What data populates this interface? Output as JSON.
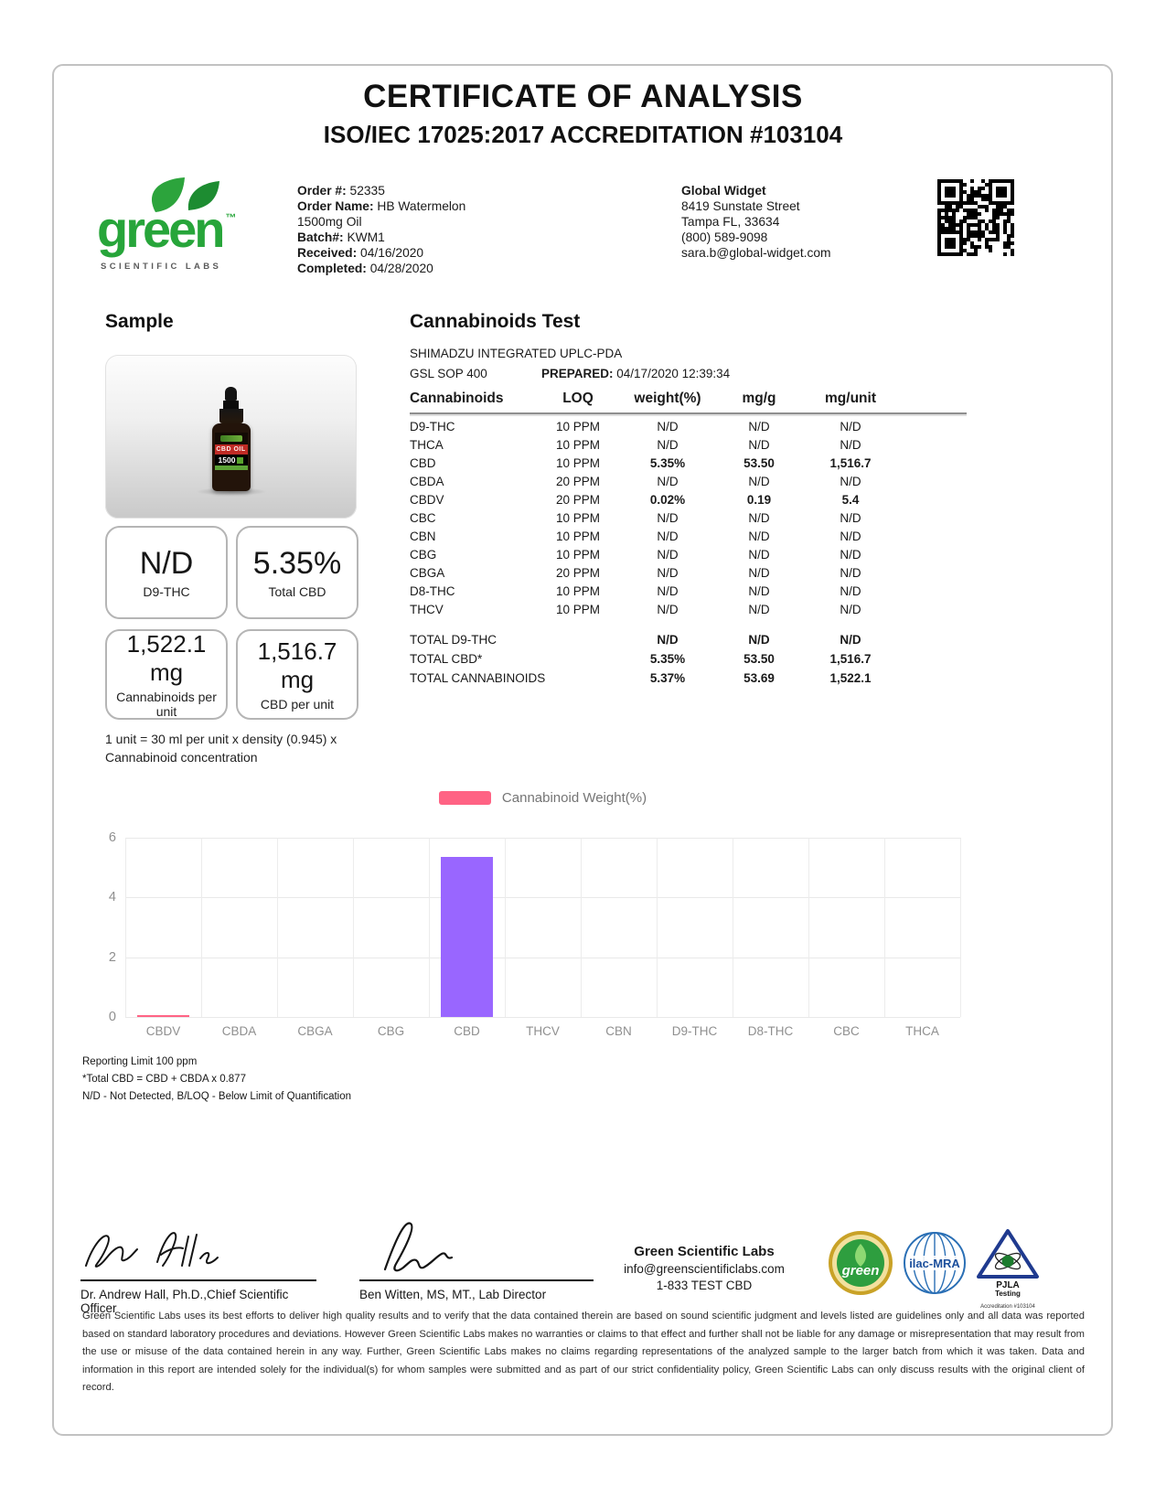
{
  "header": {
    "title": "CERTIFICATE OF ANALYSIS",
    "subtitle": "ISO/IEC 17025:2017 ACCREDITATION #103104"
  },
  "logo": {
    "brand": "green",
    "tm": "™",
    "tagline": "SCIENTIFIC LABS"
  },
  "order": {
    "order_label": "Order #:",
    "order_number": "52335",
    "name_label": "Order Name:",
    "name": "HB Watermelon 1500mg Oil",
    "batch_label": "Batch#:",
    "batch": "KWM1",
    "received_label": "Received:",
    "received": "04/16/2020",
    "completed_label": "Completed:",
    "completed": "04/28/2020"
  },
  "client": {
    "name": "Global Widget",
    "address_line1": "8419 Sunstate Street",
    "address_line2": "Tampa FL, 33634",
    "phone": "(800) 589-9098",
    "email": "sara.b@global-widget.com"
  },
  "sample": {
    "section_title": "Sample",
    "bottle_label": {
      "product": "CBD OIL",
      "strength": "1500"
    },
    "cards": [
      {
        "value": "N/D",
        "label": "D9-THC"
      },
      {
        "value": "5.35%",
        "label": "Total CBD"
      },
      {
        "value": "1,522.1 mg",
        "label": "Cannabinoids per unit"
      },
      {
        "value": "1,516.7 mg",
        "label": "CBD per unit"
      }
    ],
    "unit_note": "1 unit = 30 ml per unit x density (0.945) x Cannabinoid concentration"
  },
  "cannabinoids_test": {
    "section_title": "Cannabinoids Test",
    "instrument": "SHIMADZU INTEGRATED UPLC-PDA",
    "sop": "GSL SOP 400",
    "prepared_label": "PREPARED:",
    "prepared_value": "04/17/2020 12:39:34",
    "columns": [
      "Cannabinoids",
      "LOQ",
      "weight(%)",
      "mg/g",
      "mg/unit"
    ],
    "rows": [
      {
        "name": "D9-THC",
        "loq": "10 PPM",
        "weight": "N/D",
        "mg_g": "N/D",
        "mg_unit": "N/D",
        "bold": false
      },
      {
        "name": "THCA",
        "loq": "10 PPM",
        "weight": "N/D",
        "mg_g": "N/D",
        "mg_unit": "N/D",
        "bold": false
      },
      {
        "name": "CBD",
        "loq": "10 PPM",
        "weight": "5.35%",
        "mg_g": "53.50",
        "mg_unit": "1,516.7",
        "bold": true
      },
      {
        "name": "CBDA",
        "loq": "20 PPM",
        "weight": "N/D",
        "mg_g": "N/D",
        "mg_unit": "N/D",
        "bold": false
      },
      {
        "name": "CBDV",
        "loq": "20 PPM",
        "weight": "0.02%",
        "mg_g": "0.19",
        "mg_unit": "5.4",
        "bold": true
      },
      {
        "name": "CBC",
        "loq": "10 PPM",
        "weight": "N/D",
        "mg_g": "N/D",
        "mg_unit": "N/D",
        "bold": false
      },
      {
        "name": "CBN",
        "loq": "10 PPM",
        "weight": "N/D",
        "mg_g": "N/D",
        "mg_unit": "N/D",
        "bold": false
      },
      {
        "name": "CBG",
        "loq": "10 PPM",
        "weight": "N/D",
        "mg_g": "N/D",
        "mg_unit": "N/D",
        "bold": false
      },
      {
        "name": "CBGA",
        "loq": "20 PPM",
        "weight": "N/D",
        "mg_g": "N/D",
        "mg_unit": "N/D",
        "bold": false
      },
      {
        "name": "D8-THC",
        "loq": "10 PPM",
        "weight": "N/D",
        "mg_g": "N/D",
        "mg_unit": "N/D",
        "bold": false
      },
      {
        "name": "THCV",
        "loq": "10 PPM",
        "weight": "N/D",
        "mg_g": "N/D",
        "mg_unit": "N/D",
        "bold": false
      }
    ],
    "totals": [
      {
        "name": "TOTAL D9-THC",
        "weight": "N/D",
        "mg_g": "N/D",
        "mg_unit": "N/D"
      },
      {
        "name": "TOTAL CBD*",
        "weight": "5.35%",
        "mg_g": "53.50",
        "mg_unit": "1,516.7"
      },
      {
        "name": "TOTAL CANNABINOIDS",
        "weight": "5.37%",
        "mg_g": "53.69",
        "mg_unit": "1,522.1"
      }
    ]
  },
  "chart_data": {
    "type": "bar",
    "title": "",
    "legend_label": "Cannabinoid Weight(%)",
    "legend_color": "#ff6384",
    "legend_position": "top",
    "categories": [
      "CBDV",
      "CBDA",
      "CBGA",
      "CBG",
      "CBD",
      "THCV",
      "CBN",
      "D9-THC",
      "D8-THC",
      "CBC",
      "THCA"
    ],
    "values": [
      0.02,
      0,
      0,
      0,
      5.35,
      0,
      0,
      0,
      0,
      0,
      0
    ],
    "bar_colors": [
      "#ff6384",
      "#9966ff",
      "#9966ff",
      "#9966ff",
      "#9966ff",
      "#9966ff",
      "#9966ff",
      "#9966ff",
      "#9966ff",
      "#9966ff",
      "#9966ff"
    ],
    "xlabel": "",
    "ylabel": "",
    "ylim": [
      0,
      6
    ],
    "yticks": [
      0,
      2,
      4,
      6
    ],
    "grid": true
  },
  "footnotes": [
    "Reporting Limit 100 ppm",
    "*Total CBD = CBD + CBDA x 0.877",
    "N/D - Not Detected, B/LOQ - Below Limit of Quantification"
  ],
  "signatures": [
    {
      "name": "Dr. Andrew Hall, Ph.D.,Chief Scientific Officer"
    },
    {
      "name": "Ben Witten, MS, MT., Lab Director"
    }
  ],
  "lab_contact": {
    "name": "Green Scientific Labs",
    "email": "info@greenscientificlabs.com",
    "phone": "1-833 TEST CBD"
  },
  "badges": [
    {
      "label": "green"
    },
    {
      "label": "ilac-MRA"
    },
    {
      "label": "PJLA",
      "sub": "Testing",
      "sub2": "Accreditation #103104"
    }
  ],
  "disclaimer": "Green Scientific Labs uses its best efforts to deliver high quality results and to verify that the data contained therein are based on sound scientific judgment and levels listed are guidelines only and all data was reported based on standard laboratory procedures and deviations. However Green Scientific Labs makes no warranties or claims to that effect and further shall not be liable for any damage or misrepresentation that may result from the use or misuse of the data contained herein in any way. Further, Green Scientific Labs makes no claims regarding representations of the analyzed sample to the larger batch from which it was taken. Data and information in this report are intended solely for the individual(s) for whom samples were submitted and as part of our strict confidentiality policy, Green Scientific Labs can only discuss results with the original client of record."
}
